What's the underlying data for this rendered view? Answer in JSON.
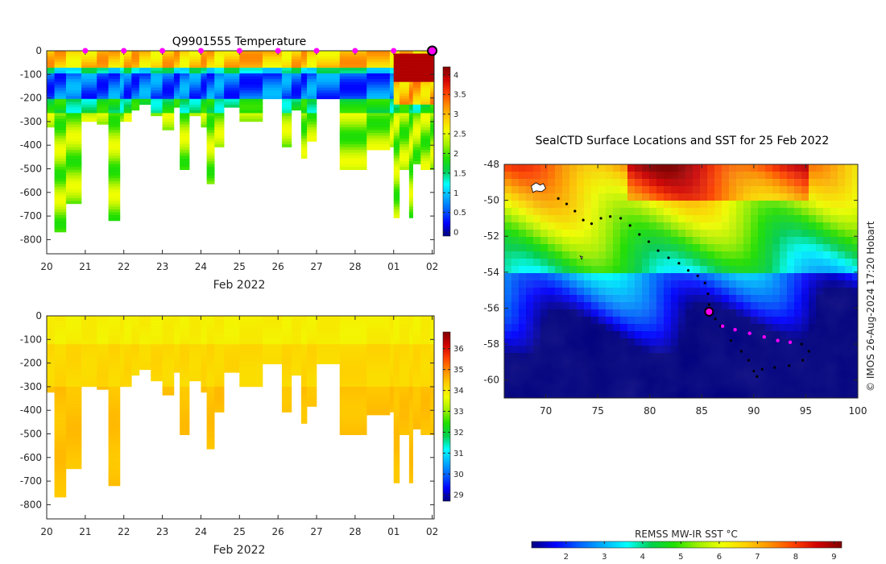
{
  "chart_data": [
    {
      "type": "heatmap",
      "title": "Q9901555  Temperature",
      "xlabel": "Feb 2022",
      "ylabel": "",
      "x_ticks": [
        "20",
        "21",
        "22",
        "23",
        "24",
        "25",
        "26",
        "27",
        "28",
        "01",
        "02"
      ],
      "y_ticks": [
        0,
        -100,
        -200,
        -300,
        -400,
        -500,
        -600,
        -700,
        -800
      ],
      "ylim": [
        -860,
        0
      ],
      "xlim": [
        20,
        30.05
      ],
      "colorbar_ticks": [
        "0",
        "0.5",
        "1",
        "1.5",
        "2",
        "2.5",
        "3",
        "3.5",
        "4"
      ],
      "colorbar_range": [
        -0.1,
        4.2
      ],
      "colorbar_colors": [
        "#00007f",
        "#0000ff",
        "#0080ff",
        "#00ffff",
        "#00c000",
        "#40e000",
        "#c0ff00",
        "#ffff00",
        "#ffc000",
        "#ff6000",
        "#c00000",
        "#800000"
      ],
      "markers_x": [
        21,
        22,
        23,
        24,
        25,
        26,
        27,
        28,
        29
      ],
      "marker_color": "#ff00ff",
      "current_profile_x": 30,
      "max_depths": [
        {
          "x": 20.0,
          "d": 320
        },
        {
          "x": 20.2,
          "d": 760
        },
        {
          "x": 20.5,
          "d": 640
        },
        {
          "x": 20.9,
          "d": 300
        },
        {
          "x": 21.3,
          "d": 310
        },
        {
          "x": 21.6,
          "d": 720
        },
        {
          "x": 21.9,
          "d": 290
        },
        {
          "x": 22.0,
          "d": 300
        },
        {
          "x": 22.2,
          "d": 250
        },
        {
          "x": 22.4,
          "d": 220
        },
        {
          "x": 22.7,
          "d": 270
        },
        {
          "x": 23.0,
          "d": 330
        },
        {
          "x": 23.3,
          "d": 240
        },
        {
          "x": 23.45,
          "d": 500
        },
        {
          "x": 23.7,
          "d": 270
        },
        {
          "x": 24.0,
          "d": 320
        },
        {
          "x": 24.15,
          "d": 560
        },
        {
          "x": 24.35,
          "d": 400
        },
        {
          "x": 24.6,
          "d": 230
        },
        {
          "x": 25.0,
          "d": 290
        },
        {
          "x": 25.6,
          "d": 200
        },
        {
          "x": 26.1,
          "d": 400
        },
        {
          "x": 26.35,
          "d": 250
        },
        {
          "x": 26.6,
          "d": 450
        },
        {
          "x": 26.75,
          "d": 380
        },
        {
          "x": 27.0,
          "d": 200
        },
        {
          "x": 27.6,
          "d": 500
        },
        {
          "x": 28.3,
          "d": 420
        },
        {
          "x": 28.9,
          "d": 400
        },
        {
          "x": 29.0,
          "d": 700
        },
        {
          "x": 29.15,
          "d": 500
        },
        {
          "x": 29.4,
          "d": 700
        },
        {
          "x": 29.5,
          "d": 480
        },
        {
          "x": 29.7,
          "d": 500
        },
        {
          "x": 29.95,
          "d": 500
        }
      ],
      "temperature_layers": [
        {
          "from": 0,
          "to": 70,
          "value": 2.9
        },
        {
          "from": 70,
          "to": 90,
          "value": 1.3
        },
        {
          "from": 90,
          "to": 200,
          "value": 0.6
        },
        {
          "from": 200,
          "to": 260,
          "value": 1.6
        },
        {
          "from": 260,
          "to": 900,
          "value": 2.2
        }
      ]
    },
    {
      "type": "heatmap",
      "title": "",
      "xlabel": "Feb 2022",
      "ylabel": "",
      "x_ticks": [
        "20",
        "21",
        "22",
        "23",
        "24",
        "25",
        "26",
        "27",
        "28",
        "01",
        "02"
      ],
      "y_ticks": [
        0,
        -100,
        -200,
        -300,
        -400,
        -500,
        -600,
        -700,
        -800
      ],
      "ylim": [
        -860,
        0
      ],
      "xlim": [
        20,
        30.05
      ],
      "colorbar_ticks": [
        "29",
        "30",
        "31",
        "32",
        "33",
        "34",
        "35",
        "36"
      ],
      "colorbar_range": [
        28.7,
        36.8
      ],
      "colorbar_colors": [
        "#00007f",
        "#0000ff",
        "#0080ff",
        "#00ffff",
        "#00c000",
        "#40e000",
        "#c0ff00",
        "#ffff00",
        "#ffc000",
        "#ff6000",
        "#c00000",
        "#800000"
      ],
      "salinity_layers": [
        {
          "from": 0,
          "to": 120,
          "value": 33.9
        },
        {
          "from": 120,
          "to": 300,
          "value": 34.2
        },
        {
          "from": 300,
          "to": 900,
          "value": 34.45
        }
      ]
    },
    {
      "type": "heatmap",
      "title": "SealCTD Surface Locations and SST for 25 Feb 2022",
      "xlabel": "",
      "ylabel": "",
      "x_ticks": [
        "70",
        "75",
        "80",
        "85",
        "90",
        "95",
        "100"
      ],
      "y_ticks": [
        "-48",
        "-50",
        "-52",
        "-54",
        "-56",
        "-58",
        "-60"
      ],
      "xlim": [
        66,
        100
      ],
      "ylim": [
        -61,
        -48
      ],
      "colorbar_label": "REMSS MW-IR SST °C",
      "colorbar_ticks": [
        "2",
        "3",
        "4",
        "5",
        "6",
        "7",
        "8",
        "9"
      ],
      "colorbar_range": [
        1.1,
        9.2
      ],
      "current_position": {
        "lon": 85.7,
        "lat": -56.2
      },
      "track": [
        [
          71.2,
          -49.9
        ],
        [
          72.0,
          -50.2
        ],
        [
          72.8,
          -50.6
        ],
        [
          73.6,
          -51.1
        ],
        [
          74.4,
          -51.3
        ],
        [
          75.3,
          -51.0
        ],
        [
          76.2,
          -50.9
        ],
        [
          77.2,
          -51.0
        ],
        [
          78.1,
          -51.4
        ],
        [
          79.0,
          -51.9
        ],
        [
          79.9,
          -52.3
        ],
        [
          80.8,
          -52.8
        ],
        [
          81.8,
          -53.2
        ],
        [
          82.8,
          -53.5
        ],
        [
          83.7,
          -53.9
        ],
        [
          84.6,
          -54.2
        ],
        [
          85.3,
          -54.6
        ],
        [
          85.6,
          -55.2
        ],
        [
          85.7,
          -55.8
        ],
        [
          85.7,
          -56.2
        ],
        [
          86.3,
          -56.6
        ],
        [
          87.0,
          -57.0
        ],
        [
          88.2,
          -57.2
        ],
        [
          89.6,
          -57.4
        ],
        [
          91.0,
          -57.6
        ],
        [
          92.3,
          -57.8
        ],
        [
          93.5,
          -57.9
        ],
        [
          94.6,
          -58.0
        ],
        [
          95.3,
          -58.4
        ],
        [
          94.7,
          -58.9
        ],
        [
          93.4,
          -59.2
        ],
        [
          92.0,
          -59.3
        ],
        [
          90.8,
          -59.4
        ],
        [
          90.3,
          -59.8
        ],
        [
          90.0,
          -59.5
        ],
        [
          89.5,
          -58.9
        ],
        [
          88.8,
          -58.4
        ],
        [
          87.8,
          -57.8
        ],
        [
          86.8,
          -57.0
        ]
      ],
      "recent_track": [
        [
          87.0,
          -57.0
        ],
        [
          88.2,
          -57.2
        ],
        [
          89.6,
          -57.4
        ],
        [
          91.0,
          -57.6
        ],
        [
          92.3,
          -57.8
        ],
        [
          93.5,
          -57.9
        ]
      ]
    }
  ],
  "credit": "© IMOS 26-Aug-2024 17:20 Hobart"
}
